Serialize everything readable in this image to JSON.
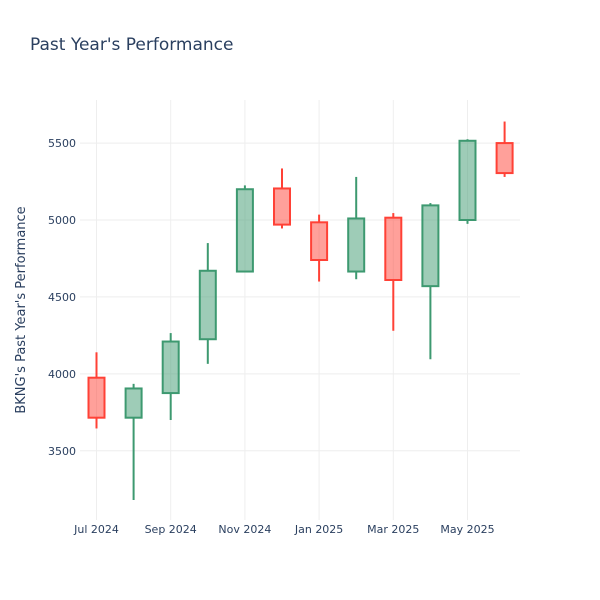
{
  "chart_data": {
    "type": "candlestick",
    "title": "Past Year's Performance",
    "xlabel": "",
    "ylabel": "BKNG's Past Year's Performance",
    "x_ticks": [
      "Jul 2024",
      "Sep 2024",
      "Nov 2024",
      "Jan 2025",
      "Mar 2025",
      "May 2025"
    ],
    "y_ticks": [
      3500,
      4000,
      4500,
      5000,
      5500
    ],
    "ylim": [
      3050,
      5780
    ],
    "grid": true,
    "colors": {
      "increasing": "#3d9970",
      "decreasing": "#ff4136"
    },
    "series": [
      {
        "date": "2024-07",
        "open": 3975,
        "high": 4140,
        "low": 3645,
        "close": 3715
      },
      {
        "date": "2024-08",
        "open": 3715,
        "high": 3935,
        "low": 3180,
        "close": 3905
      },
      {
        "date": "2024-09",
        "open": 3875,
        "high": 4265,
        "low": 3700,
        "close": 4210
      },
      {
        "date": "2024-10",
        "open": 4225,
        "high": 4850,
        "low": 4065,
        "close": 4670
      },
      {
        "date": "2024-11",
        "open": 4665,
        "high": 5225,
        "low": 4665,
        "close": 5200
      },
      {
        "date": "2024-12",
        "open": 5205,
        "high": 5335,
        "low": 4945,
        "close": 4970
      },
      {
        "date": "2025-01",
        "open": 4985,
        "high": 5035,
        "low": 4600,
        "close": 4740
      },
      {
        "date": "2025-02",
        "open": 4665,
        "high": 5280,
        "low": 4615,
        "close": 5010
      },
      {
        "date": "2025-03",
        "open": 5015,
        "high": 5045,
        "low": 4280,
        "close": 4610
      },
      {
        "date": "2025-04",
        "open": 4570,
        "high": 5110,
        "low": 4095,
        "close": 5095
      },
      {
        "date": "2025-05",
        "open": 5000,
        "high": 5525,
        "low": 4975,
        "close": 5515
      },
      {
        "date": "2025-06",
        "open": 5500,
        "high": 5640,
        "low": 5280,
        "close": 5305
      }
    ]
  }
}
